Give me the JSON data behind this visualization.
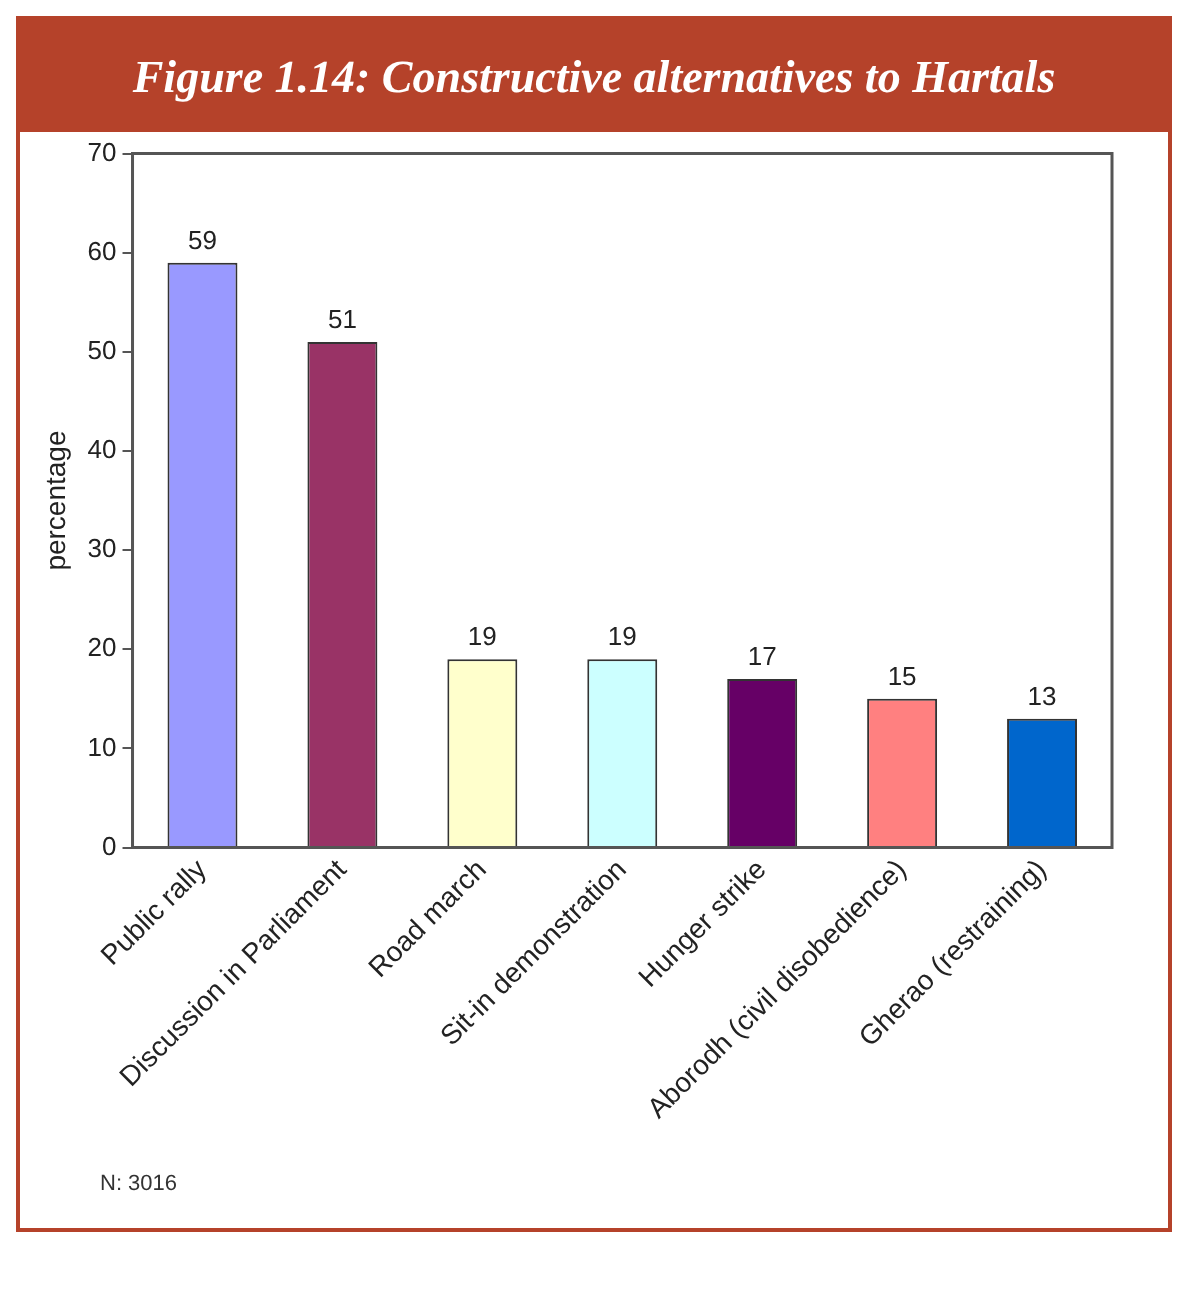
{
  "chart_data": {
    "type": "bar",
    "title": "Figure 1.14: Constructive alternatives to Hartals",
    "ylabel": "percentage",
    "categories": [
      "Public rally",
      "Discussion in Parliament",
      "Road march",
      "Sit-in demonstration",
      "Hunger strike",
      "Aborodh (civil disobedience)",
      "Gherao (restraining)"
    ],
    "values": [
      59,
      51,
      19,
      19,
      17,
      15,
      13
    ],
    "colors": [
      "#9999ff",
      "#993366",
      "#ffffcc",
      "#ccffff",
      "#660066",
      "#ff8080",
      "#0066cc"
    ],
    "ylim": [
      0,
      70
    ],
    "yticks": [
      0,
      10,
      20,
      30,
      40,
      50,
      60,
      70
    ],
    "grid": false,
    "legend": false,
    "data_labels": true,
    "annotations": [
      "N: 3016"
    ]
  }
}
